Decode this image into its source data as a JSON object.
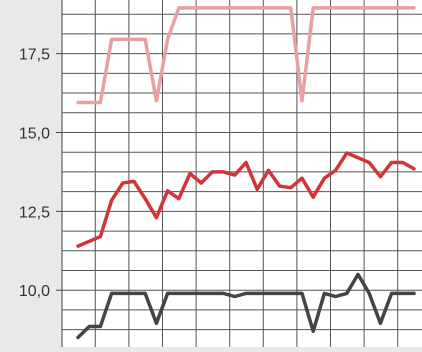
{
  "chart_data": {
    "type": "line",
    "title": "",
    "xlabel": "",
    "ylabel": "",
    "ylim": [
      8.2,
      19.2
    ],
    "yticks": [
      10.0,
      12.5,
      15.0,
      17.5
    ],
    "ytick_labels": [
      "10,0",
      "12,5",
      "15,0",
      "17,5"
    ],
    "x_count": 31,
    "grid": true,
    "background": "#ffffff",
    "series": [
      {
        "color": "#e8a0a3",
        "values": [
          15.95,
          15.95,
          15.95,
          17.95,
          17.95,
          17.95,
          17.95,
          16.0,
          17.95,
          18.95,
          18.95,
          18.95,
          18.95,
          18.95,
          18.95,
          18.95,
          18.95,
          18.95,
          18.95,
          18.95,
          16.0,
          18.95,
          18.95,
          18.95,
          18.95,
          18.95,
          18.95,
          18.95,
          18.95,
          18.95,
          18.95
        ]
      },
      {
        "color": "#d0353b",
        "values": [
          11.4,
          11.55,
          11.7,
          12.85,
          13.4,
          13.45,
          12.9,
          12.3,
          13.15,
          12.9,
          13.7,
          13.4,
          13.75,
          13.75,
          13.65,
          14.05,
          13.2,
          13.8,
          13.3,
          13.25,
          13.55,
          12.95,
          13.55,
          13.8,
          14.35,
          14.2,
          14.05,
          13.6,
          14.05,
          14.05,
          13.85
        ]
      },
      {
        "color": "#444444",
        "values": [
          8.5,
          8.85,
          8.85,
          9.9,
          9.9,
          9.9,
          9.9,
          8.95,
          9.9,
          9.9,
          9.9,
          9.9,
          9.9,
          9.9,
          9.8,
          9.9,
          9.9,
          9.9,
          9.9,
          9.9,
          9.9,
          8.7,
          9.9,
          9.8,
          9.9,
          10.5,
          9.9,
          8.95,
          9.9,
          9.9,
          9.9
        ]
      }
    ]
  }
}
